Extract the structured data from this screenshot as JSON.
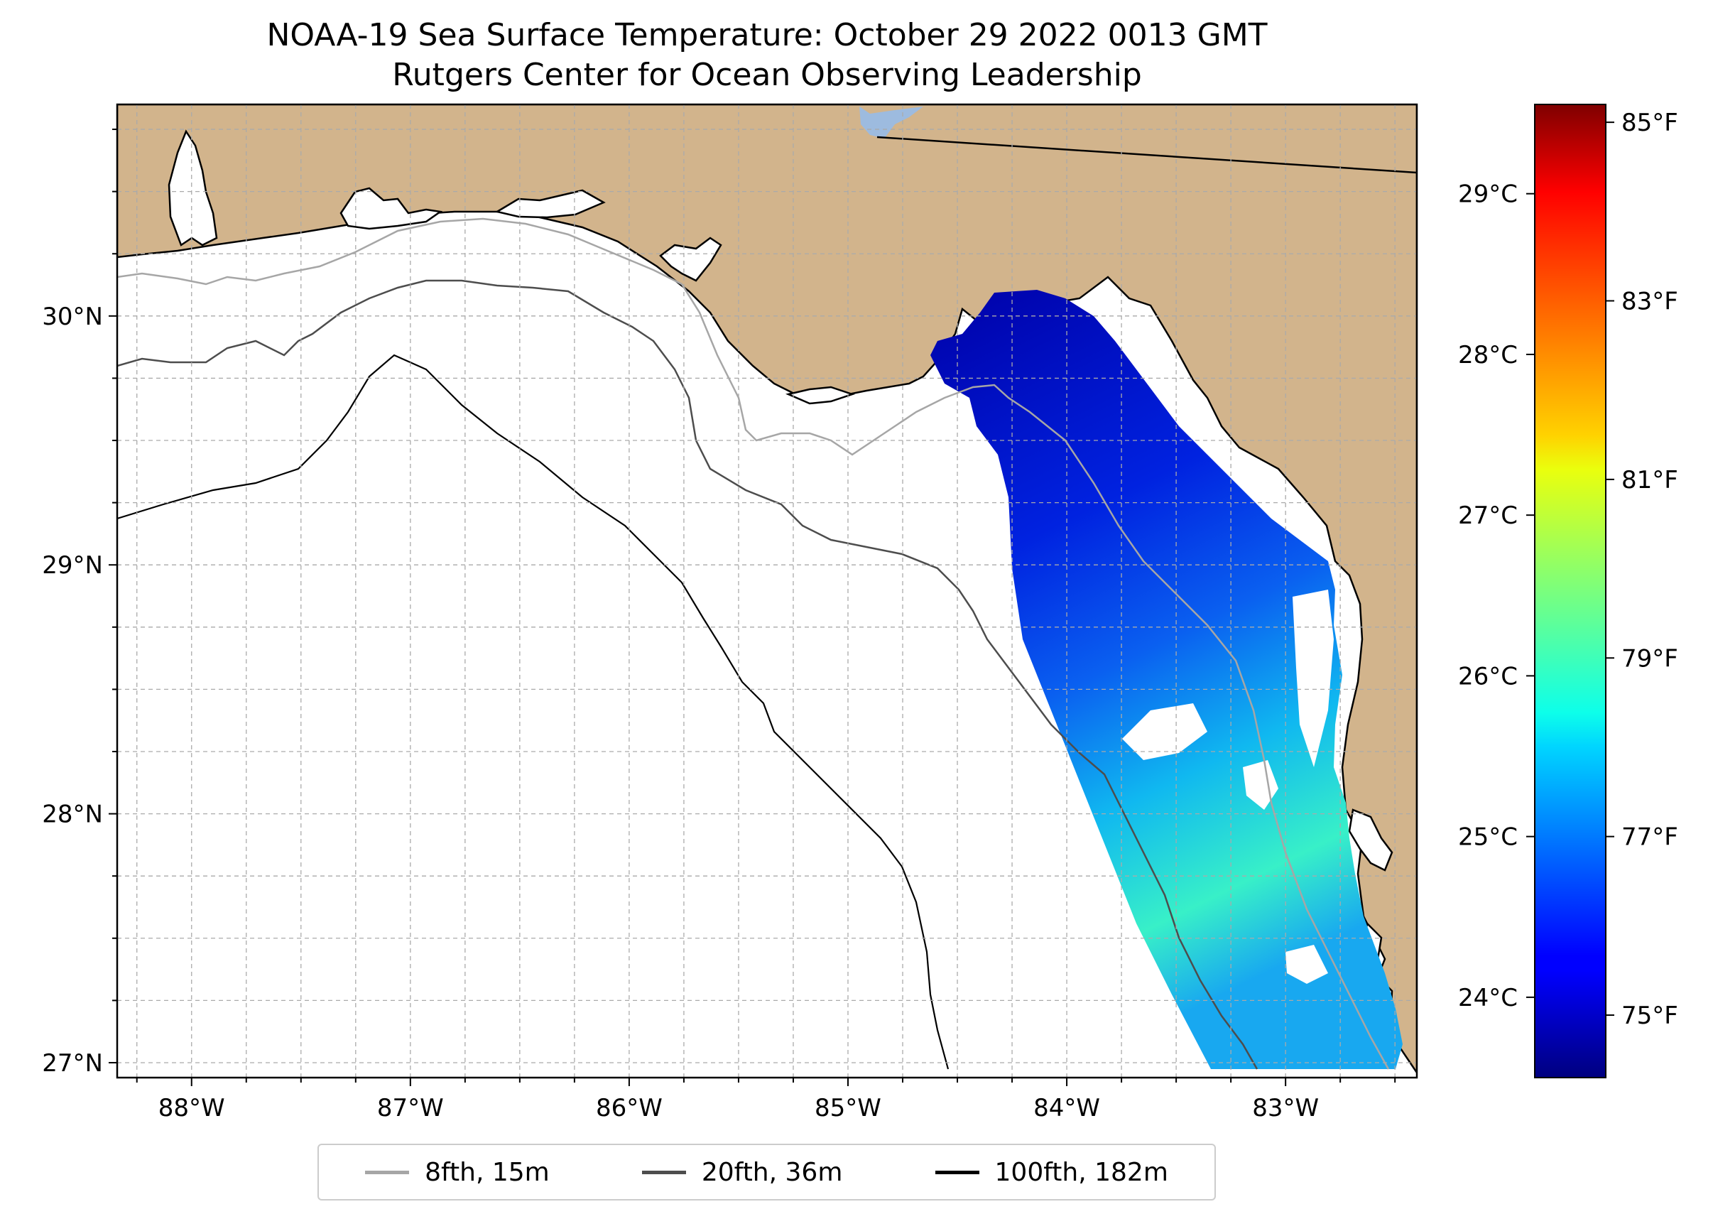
{
  "title": {
    "line1": "NOAA-19 Sea Surface Temperature: October 29 2022 0013 GMT",
    "line2": "Rutgers Center for Ocean Observing Leadership"
  },
  "map": {
    "extent": {
      "lon_min": -88.34,
      "lon_max": -82.4,
      "lat_min": 26.94,
      "lat_max": 30.85
    },
    "lon_ticks": [
      {
        "value": -88,
        "label": "88°W"
      },
      {
        "value": -87,
        "label": "87°W"
      },
      {
        "value": -86,
        "label": "86°W"
      },
      {
        "value": -85,
        "label": "85°W"
      },
      {
        "value": -84,
        "label": "84°W"
      },
      {
        "value": -83,
        "label": "83°W"
      }
    ],
    "lat_ticks": [
      {
        "value": 27,
        "label": "27°N"
      },
      {
        "value": 28,
        "label": "28°N"
      },
      {
        "value": 29,
        "label": "29°N"
      },
      {
        "value": 30,
        "label": "30°N"
      }
    ],
    "colors": {
      "land": "#d2b48c",
      "ocean": "#ffffff",
      "grid": "#aaaaaa",
      "lake": "#9dbbdf"
    }
  },
  "colorbar": {
    "celsius_ticks": [
      {
        "value": 24,
        "label": "24°C"
      },
      {
        "value": 25,
        "label": "25°C"
      },
      {
        "value": 26,
        "label": "26°C"
      },
      {
        "value": 27,
        "label": "27°C"
      },
      {
        "value": 28,
        "label": "28°C"
      },
      {
        "value": 29,
        "label": "29°C"
      }
    ],
    "fahrenheit_ticks": [
      {
        "value": 75,
        "label": "75°F"
      },
      {
        "value": 77,
        "label": "77°F"
      },
      {
        "value": 79,
        "label": "79°F"
      },
      {
        "value": 81,
        "label": "81°F"
      },
      {
        "value": 83,
        "label": "83°F"
      },
      {
        "value": 85,
        "label": "85°F"
      }
    ],
    "range_f": [
      74.3,
      85.2
    ],
    "colormap": "jet"
  },
  "legend": [
    {
      "label": "8fth, 15m",
      "color": "#a6a6a6"
    },
    {
      "label": "20fth, 36m",
      "color": "#4d4d4d"
    },
    {
      "label": "100fth, 182m",
      "color": "#000000"
    }
  ]
}
